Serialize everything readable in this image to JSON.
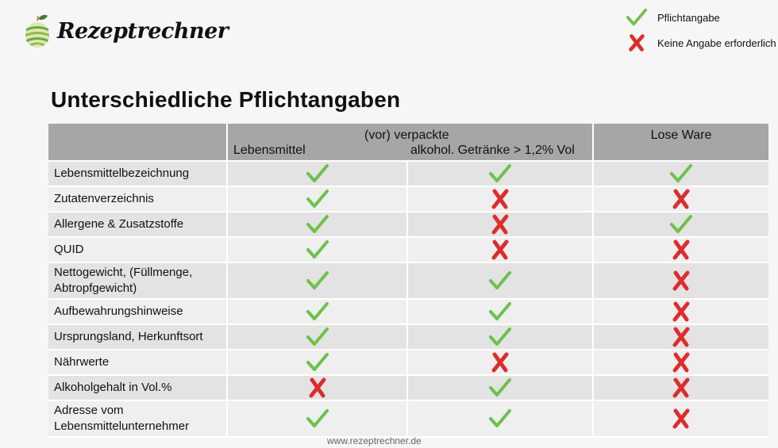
{
  "brand": {
    "name": "Rezeptrechner",
    "logo_icon": "apple-icon"
  },
  "legend": [
    {
      "icon": "check-icon",
      "label": "Pflichtangabe",
      "color": "#6cc24a"
    },
    {
      "icon": "cross-icon",
      "label": "Keine Angabe erforderlich",
      "color": "#e02b2b"
    }
  ],
  "title": "Unterschiedliche Pflichtangaben",
  "table": {
    "header": {
      "group_label": "(vor) verpackte",
      "columns": [
        "",
        "Lebensmittel",
        "alkohol. Getränke > 1,2% Vol",
        "Lose Ware"
      ]
    },
    "rows": [
      {
        "label": "Lebensmittelbezeichnung",
        "values": [
          "check",
          "check",
          "check"
        ]
      },
      {
        "label": "Zutatenverzeichnis",
        "values": [
          "check",
          "cross",
          "cross"
        ]
      },
      {
        "label": "Allergene & Zusatzstoffe",
        "values": [
          "check",
          "cross",
          "check"
        ]
      },
      {
        "label": "QUID",
        "values": [
          "check",
          "cross",
          "cross"
        ]
      },
      {
        "label": "Nettogewicht, (Füllmenge, Abtropfgewicht)",
        "values": [
          "check",
          "check",
          "cross"
        ]
      },
      {
        "label": "Aufbewahrungshinweise",
        "values": [
          "check",
          "check",
          "cross"
        ]
      },
      {
        "label": "Ursprungsland, Herkunftsort",
        "values": [
          "check",
          "check",
          "cross"
        ]
      },
      {
        "label": "Nährwerte",
        "values": [
          "check",
          "cross",
          "cross"
        ]
      },
      {
        "label": "Alkoholgehalt in Vol.%",
        "values": [
          "cross",
          "check",
          "cross"
        ]
      },
      {
        "label": "Adresse vom Lebensmittelunternehmer",
        "values": [
          "check",
          "check",
          "cross"
        ]
      }
    ]
  },
  "colors": {
    "check": "#6cc24a",
    "cross": "#e02b2b",
    "header_bg": "#a6a6a6",
    "row_odd": "#e3e3e3",
    "row_even": "#efefef"
  },
  "footer": {
    "url": "www.rezeptrechner.de"
  }
}
